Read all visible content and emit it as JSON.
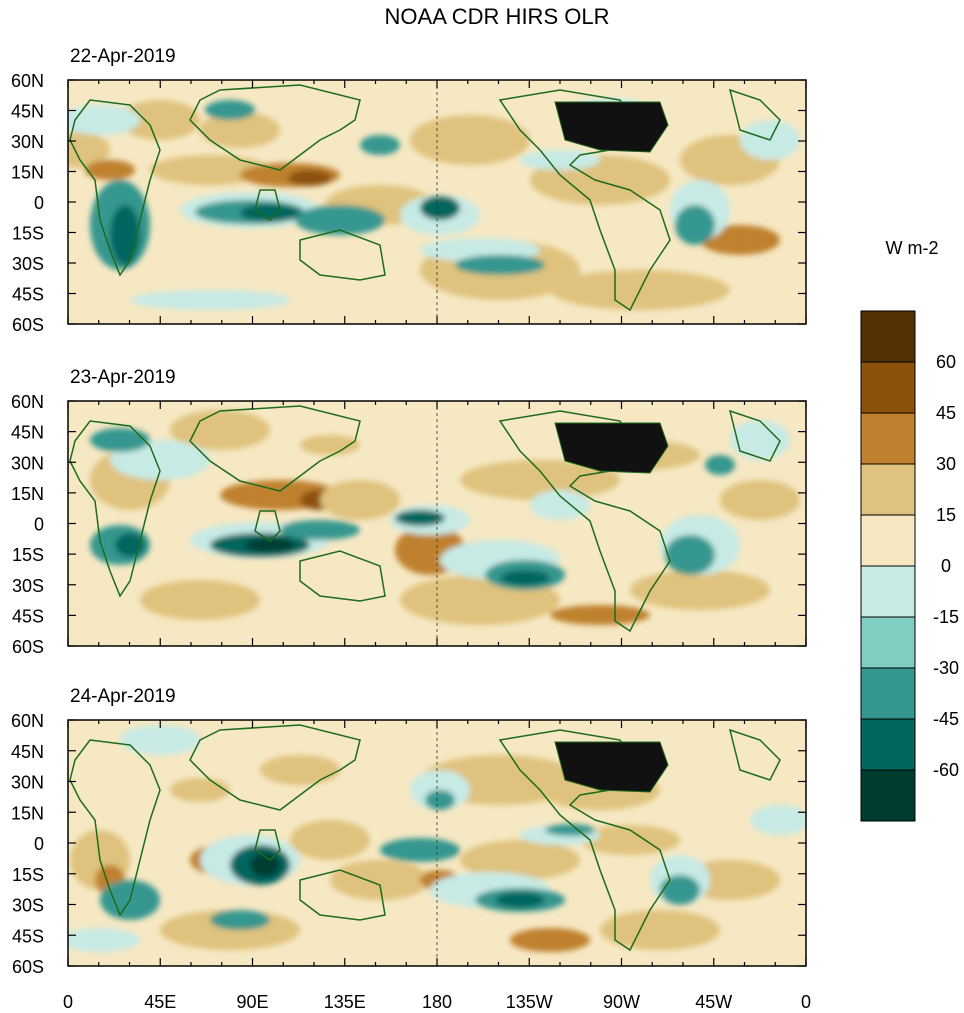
{
  "title": "NOAA CDR HIRS OLR",
  "colorbar": {
    "units": "W m-2",
    "levels": [
      75,
      60,
      45,
      30,
      15,
      0,
      -15,
      -30,
      -45,
      -60,
      -75
    ],
    "labels": [
      "60",
      "45",
      "30",
      "15",
      "0",
      "-15",
      "-30",
      "-45",
      "-60"
    ],
    "colors": [
      "#543005",
      "#8c510a",
      "#bf812d",
      "#dfc27d",
      "#f6e8c3",
      "#c7eae5",
      "#80cdc1",
      "#35978f",
      "#01665e",
      "#003c30"
    ]
  },
  "lat_labels": [
    "60N",
    "45N",
    "30N",
    "15N",
    "0",
    "15S",
    "30S",
    "45S",
    "60S"
  ],
  "lon_labels": [
    "0",
    "45E",
    "90E",
    "135E",
    "180",
    "135W",
    "90W",
    "45W",
    "0"
  ],
  "panels": [
    {
      "date": "22-Apr-2019"
    },
    {
      "date": "23-Apr-2019"
    },
    {
      "date": "24-Apr-2019"
    }
  ]
}
